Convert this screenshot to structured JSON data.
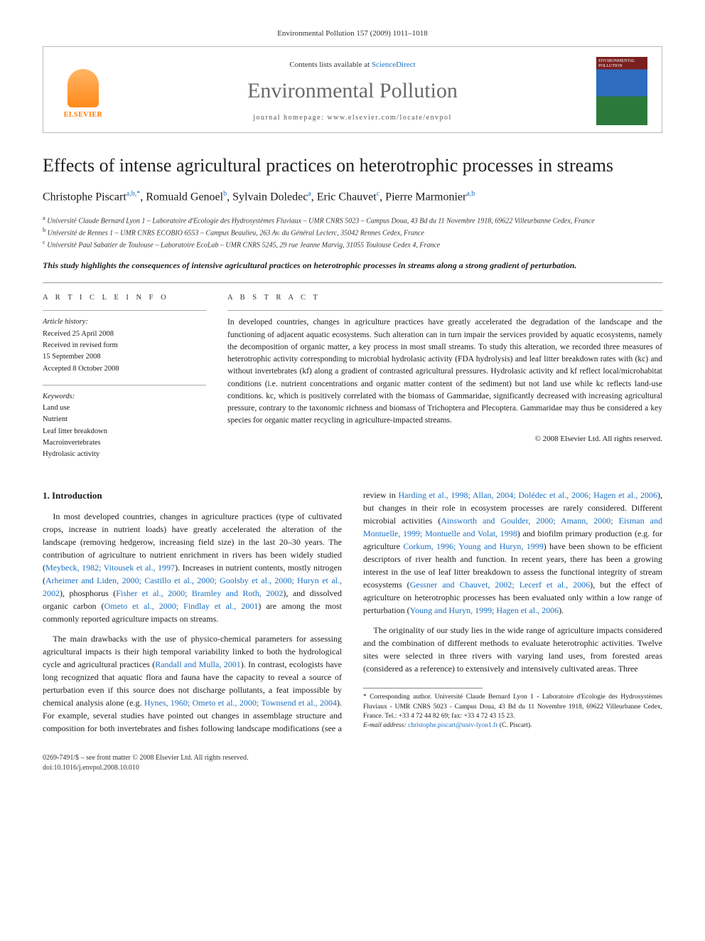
{
  "running_head": "Environmental Pollution 157 (2009) 1011–1018",
  "header": {
    "publisher_name": "ELSEVIER",
    "contents_prefix": "Contents lists available at ",
    "contents_link": "ScienceDirect",
    "journal_name": "Environmental Pollution",
    "homepage_prefix": "journal homepage: ",
    "homepage_url": "www.elsevier.com/locate/envpol",
    "cover_label": "ENVIRONMENTAL POLLUTION"
  },
  "article": {
    "title": "Effects of intense agricultural practices on heterotrophic processes in streams",
    "authors_html": "Christophe Piscart",
    "authors": [
      {
        "name": "Christophe Piscart",
        "aff": "a,b,",
        "corr": "*"
      },
      {
        "name": "Romuald Genoel",
        "aff": "b"
      },
      {
        "name": "Sylvain Doledec",
        "aff": "a"
      },
      {
        "name": "Eric Chauvet",
        "aff": "c"
      },
      {
        "name": "Pierre Marmonier",
        "aff": "a,b"
      }
    ],
    "affiliations": [
      {
        "sup": "a",
        "text": "Université Claude Bernard Lyon 1 – Laboratoire d'Ecologie des Hydrosystèmes Fluviaux – UMR CNRS 5023 – Campus Doua, 43 Bd du 11 Novembre 1918, 69622 Villeurbanne Cedex, France"
      },
      {
        "sup": "b",
        "text": "Université de Rennes 1 – UMR CNRS ECOBIO 6553 – Campus Beaulieu, 263 Av. du Général Leclerc, 35042 Rennes Cedex, France"
      },
      {
        "sup": "c",
        "text": "Université Paul Sabatier de Toulouse – Laboratoire EcoLab – UMR CNRS 5245, 29 rue Jeanne Marvig, 31055 Toulouse Cedex 4, France"
      }
    ],
    "highlight": "This study highlights the consequences of intensive agricultural practices on heterotrophic processes in streams along a strong gradient of perturbation."
  },
  "article_info": {
    "heading": "A R T I C L E   I N F O",
    "history_label": "Article history:",
    "history": [
      "Received 25 April 2008",
      "Received in revised form",
      "15 September 2008",
      "Accepted 8 October 2008"
    ],
    "keywords_label": "Keywords:",
    "keywords": [
      "Land use",
      "Nutrient",
      "Leaf litter breakdown",
      "Macroinvertebrates",
      "Hydrolasic activity"
    ]
  },
  "abstract": {
    "heading": "A B S T R A C T",
    "text": "In developed countries, changes in agriculture practices have greatly accelerated the degradation of the landscape and the functioning of adjacent aquatic ecosystems. Such alteration can in turn impair the services provided by aquatic ecosystems, namely the decomposition of organic matter, a key process in most small streams. To study this alteration, we recorded three measures of heterotrophic activity corresponding to microbial hydrolasic activity (FDA hydrolysis) and leaf litter breakdown rates with (kc) and without invertebrates (kf) along a gradient of contrasted agricultural pressures. Hydrolasic activity and kf reflect local/microhabitat conditions (i.e. nutrient concentrations and organic matter content of the sediment) but not land use while kc reflects land-use conditions. kc, which is positively correlated with the biomass of Gammaridae, significantly decreased with increasing agricultural pressure, contrary to the taxonomic richness and biomass of Trichoptera and Plecoptera. Gammaridae may thus be considered a key species for organic matter recycling in agriculture-impacted streams.",
    "copyright": "© 2008 Elsevier Ltd. All rights reserved."
  },
  "body": {
    "sec1_heading": "1. Introduction",
    "p1": "In most developed countries, changes in agriculture practices (type of cultivated crops, increase in nutrient loads) have greatly accelerated the alteration of the landscape (removing hedgerow, increasing field size) in the last 20–30 years. The contribution of agriculture to nutrient enrichment in rivers has been widely studied (",
    "p1_cite1": "Meybeck, 1982; Vitousek et al., 1997",
    "p1b": "). Increases in nutrient contents, mostly nitrogen (",
    "p1_cite2": "Arheimer and Liden, 2000; Castillo et al., 2000; Goolsby et al., 2000; Huryn et al., 2002",
    "p1c": "), phosphorus (",
    "p1_cite3": "Fisher et al., 2000; Bramley and Roth, 2002",
    "p1d": "), and dissolved organic carbon (",
    "p1_cite4": "Ometo et al., 2000; Findlay et al., 2001",
    "p1e": ") are among the most commonly reported agriculture impacts on streams.",
    "p2a": "The main drawbacks with the use of physico-chemical parameters for assessing agricultural impacts is their high temporal variability linked to both the hydrological cycle and agricultural practices (",
    "p2_cite1": "Randall and Mulla, 2001",
    "p2b": "). In contrast, ecologists have long recognized that aquatic flora and fauna have the capacity to reveal a source of perturbation even if this source does not discharge pollutants, a feat impossible by chemical analysis alone (e.g. ",
    "p2_cite2": "Hynes, 1960; Ometo et al., 2000; Townsend et al., 2004",
    "p2c": "). For example, several studies have pointed out changes in assemblage structure and composition for both invertebrates and fishes following landscape modifications (see a review in ",
    "p2_cite3": "Harding et al., 1998; Allan, 2004; Dolédec et al., 2006; Hagen et al., 2006",
    "p2d": "), but changes in their role in ecosystem processes are rarely considered. Different microbial activities (",
    "p2_cite4": "Ainsworth and Goulder, 2000; Amann, 2000; Eisman and Montuelle, 1999; Montuelle and Volat, 1998",
    "p2e": ") and biofilm primary production (e.g. for agriculture ",
    "p2_cite5": "Corkum, 1996; Young and Huryn, 1999",
    "p2f": ") have been shown to be efficient descriptors of river health and function. In recent years, there has been a growing interest in the use of leaf litter breakdown to assess the functional integrity of stream ecosystems (",
    "p2_cite6": "Gessner and Chauvet, 2002; Lecerf et al., 2006",
    "p2g": "), but the effect of agriculture on heterotrophic processes has been evaluated only within a low range of perturbation (",
    "p2_cite7": "Young and Huryn, 1999; Hagen et al., 2006",
    "p2h": ").",
    "p3": "The originality of our study lies in the wide range of agriculture impacts considered and the combination of different methods to evaluate heterotrophic activities. Twelve sites were selected in three rivers with varying land uses, from forested areas (considered as a reference) to extensively and intensively cultivated areas. Three"
  },
  "footnote": {
    "corr_label": "* Corresponding author.",
    "corr_text": " Université Claude Bernard Lyon 1 - Laboratoire d'Ecologie des Hydrosystèmes Fluviaux - UMR CNRS 5023 - Campus Doua, 43 Bd du 11 Novembre 1918, 69622 Villeurbanne Cedex, France. Tel.: +33 4 72 44 82 69; fax: +33 4 72 43 15 23.",
    "email_label": "E-mail address: ",
    "email": "christophe.piscart@univ-lyon1.fr",
    "email_suffix": " (C. Piscart)."
  },
  "footer": {
    "left_line1": "0269-7491/$ – see front matter © 2008 Elsevier Ltd. All rights reserved.",
    "left_line2": "doi:10.1016/j.envpol.2008.10.010"
  },
  "colors": {
    "link": "#1b6fc2",
    "elsevier_orange": "#ff7a00",
    "rule": "#999999"
  }
}
